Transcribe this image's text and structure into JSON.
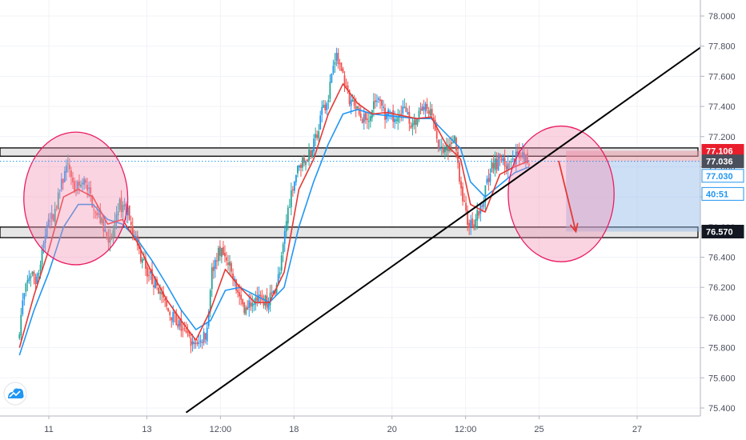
{
  "chart_data": {
    "type": "candlestick",
    "ylim": [
      75.35,
      78.1
    ],
    "y_ticks": [
      "78.000",
      "77.800",
      "77.600",
      "77.400",
      "77.200",
      "77.000",
      "76.800",
      "76.600",
      "76.400",
      "76.200",
      "76.000",
      "75.800",
      "75.600",
      "75.400"
    ],
    "x_ticks": [
      {
        "label": "11",
        "x": 0.0
      },
      {
        "label": "13",
        "x": 2.0
      },
      {
        "label": "12:00",
        "x": 3.5
      },
      {
        "label": "18",
        "x": 5.0
      },
      {
        "label": "20",
        "x": 7.0
      },
      {
        "label": "12:00",
        "x": 8.5
      },
      {
        "label": "25",
        "x": 10.0
      },
      {
        "label": "27",
        "x": 12.0
      }
    ],
    "xlim": [
      -0.6,
      14.0
    ],
    "price_path": [
      [
        -0.6,
        75.85
      ],
      [
        -0.5,
        76.1
      ],
      [
        -0.35,
        76.3
      ],
      [
        -0.2,
        76.25
      ],
      [
        -0.05,
        76.55
      ],
      [
        0.15,
        76.7
      ],
      [
        0.35,
        76.95
      ],
      [
        0.45,
        77.0
      ],
      [
        0.55,
        76.85
      ],
      [
        0.75,
        76.9
      ],
      [
        0.95,
        76.75
      ],
      [
        1.15,
        76.6
      ],
      [
        1.3,
        76.5
      ],
      [
        1.45,
        76.75
      ],
      [
        1.65,
        76.7
      ],
      [
        1.85,
        76.45
      ],
      [
        2.05,
        76.3
      ],
      [
        2.25,
        76.2
      ],
      [
        2.45,
        76.05
      ],
      [
        2.7,
        75.95
      ],
      [
        2.9,
        75.85
      ],
      [
        3.05,
        75.8
      ],
      [
        3.25,
        75.9
      ],
      [
        3.35,
        76.3
      ],
      [
        3.5,
        76.45
      ],
      [
        3.7,
        76.35
      ],
      [
        3.85,
        76.2
      ],
      [
        4.05,
        76.05
      ],
      [
        4.25,
        76.15
      ],
      [
        4.45,
        76.1
      ],
      [
        4.6,
        76.15
      ],
      [
        4.75,
        76.3
      ],
      [
        4.9,
        76.7
      ],
      [
        5.05,
        76.95
      ],
      [
        5.25,
        77.05
      ],
      [
        5.45,
        77.15
      ],
      [
        5.6,
        77.35
      ],
      [
        5.75,
        77.5
      ],
      [
        5.85,
        77.75
      ],
      [
        6.0,
        77.65
      ],
      [
        6.15,
        77.45
      ],
      [
        6.35,
        77.35
      ],
      [
        6.5,
        77.3
      ],
      [
        6.7,
        77.45
      ],
      [
        6.9,
        77.35
      ],
      [
        7.1,
        77.3
      ],
      [
        7.3,
        77.4
      ],
      [
        7.45,
        77.25
      ],
      [
        7.65,
        77.4
      ],
      [
        7.85,
        77.35
      ],
      [
        8.0,
        77.1
      ],
      [
        8.15,
        77.1
      ],
      [
        8.3,
        77.2
      ],
      [
        8.45,
        76.85
      ],
      [
        8.55,
        76.65
      ],
      [
        8.7,
        76.6
      ],
      [
        8.85,
        76.75
      ],
      [
        9.05,
        77.0
      ],
      [
        9.25,
        77.05
      ],
      [
        9.45,
        77.0
      ],
      [
        9.65,
        77.1
      ],
      [
        9.8,
        77.05
      ]
    ],
    "ema_fast": [
      [
        -0.6,
        75.8
      ],
      [
        -0.3,
        76.15
      ],
      [
        0.0,
        76.45
      ],
      [
        0.3,
        76.8
      ],
      [
        0.6,
        76.85
      ],
      [
        0.9,
        76.8
      ],
      [
        1.2,
        76.62
      ],
      [
        1.5,
        76.65
      ],
      [
        1.8,
        76.5
      ],
      [
        2.1,
        76.3
      ],
      [
        2.4,
        76.12
      ],
      [
        2.7,
        75.98
      ],
      [
        3.0,
        75.85
      ],
      [
        3.3,
        76.05
      ],
      [
        3.6,
        76.32
      ],
      [
        3.9,
        76.2
      ],
      [
        4.2,
        76.1
      ],
      [
        4.5,
        76.1
      ],
      [
        4.8,
        76.3
      ],
      [
        5.1,
        76.85
      ],
      [
        5.4,
        77.05
      ],
      [
        5.7,
        77.35
      ],
      [
        6.0,
        77.55
      ],
      [
        6.3,
        77.42
      ],
      [
        6.6,
        77.35
      ],
      [
        6.9,
        77.36
      ],
      [
        7.2,
        77.34
      ],
      [
        7.5,
        77.32
      ],
      [
        7.8,
        77.33
      ],
      [
        8.1,
        77.15
      ],
      [
        8.4,
        77.05
      ],
      [
        8.6,
        76.75
      ],
      [
        8.9,
        76.7
      ],
      [
        9.2,
        76.95
      ],
      [
        9.5,
        77.0
      ],
      [
        9.8,
        77.04
      ]
    ],
    "ema_slow": [
      [
        -0.6,
        75.75
      ],
      [
        -0.3,
        76.05
      ],
      [
        0.0,
        76.3
      ],
      [
        0.3,
        76.6
      ],
      [
        0.6,
        76.75
      ],
      [
        0.9,
        76.75
      ],
      [
        1.2,
        76.65
      ],
      [
        1.5,
        76.62
      ],
      [
        1.8,
        76.52
      ],
      [
        2.1,
        76.38
      ],
      [
        2.4,
        76.22
      ],
      [
        2.7,
        76.05
      ],
      [
        3.0,
        75.92
      ],
      [
        3.3,
        75.98
      ],
      [
        3.6,
        76.18
      ],
      [
        3.9,
        76.2
      ],
      [
        4.2,
        76.15
      ],
      [
        4.5,
        76.1
      ],
      [
        4.8,
        76.2
      ],
      [
        5.1,
        76.6
      ],
      [
        5.4,
        76.9
      ],
      [
        5.7,
        77.15
      ],
      [
        6.0,
        77.35
      ],
      [
        6.3,
        77.38
      ],
      [
        6.6,
        77.35
      ],
      [
        6.9,
        77.34
      ],
      [
        7.2,
        77.33
      ],
      [
        7.5,
        77.32
      ],
      [
        7.8,
        77.32
      ],
      [
        8.1,
        77.22
      ],
      [
        8.4,
        77.12
      ],
      [
        8.6,
        76.9
      ],
      [
        8.9,
        76.8
      ],
      [
        9.2,
        76.88
      ],
      [
        9.5,
        76.96
      ],
      [
        9.8,
        77.0
      ]
    ],
    "trendline": [
      [
        2.8,
        75.37
      ],
      [
        13.85,
        77.92
      ]
    ],
    "resistance_zone": [
      77.07,
      77.125
    ],
    "support_zone": [
      76.53,
      76.6
    ],
    "short_position": {
      "x_start": 10.55,
      "x_end": 13.75,
      "entry": 77.036,
      "stop": 77.106,
      "target": 76.57
    },
    "arrow": {
      "from": [
        10.4,
        77.04
      ],
      "to": [
        10.75,
        76.57
      ]
    },
    "circles": [
      {
        "cx": 0.55,
        "cy": 76.79,
        "rx": 1.06,
        "ry": 0.44
      },
      {
        "cx": 10.45,
        "cy": 76.82,
        "rx": 1.08,
        "ry": 0.45
      }
    ],
    "current_price_line": 77.036,
    "price_tags": [
      {
        "label": "77.106",
        "value": 77.106,
        "bg": "#e91e2c",
        "fg": "#ffffff"
      },
      {
        "label": "77.036",
        "value": 77.036,
        "bg": "#4a4f5c",
        "fg": "#ffffff"
      },
      {
        "label": "77.030",
        "value": 76.94,
        "bg": "#ffffff",
        "fg": "#2196f3",
        "border": "#2196f3"
      },
      {
        "label": "40:51",
        "value": 76.82,
        "bg": "#ffffff",
        "fg": "#2196f3",
        "border": "#2196f3"
      },
      {
        "label": "76.570",
        "value": 76.57,
        "bg": "#131722",
        "fg": "#ffffff"
      }
    ],
    "colors": {
      "up": "#26a69a",
      "up_alt": "#2196f3",
      "down": "#ef5350",
      "ema_fast": "#e53935",
      "ema_slow": "#2196f3",
      "trendline": "#000000",
      "circle_fill": "#f48fb1",
      "circle_stroke": "#e91e63",
      "target_fill": "#90b8e8",
      "stop_fill": "#e39aa6"
    },
    "logo_icon": "tradingview-cloud-icon"
  }
}
